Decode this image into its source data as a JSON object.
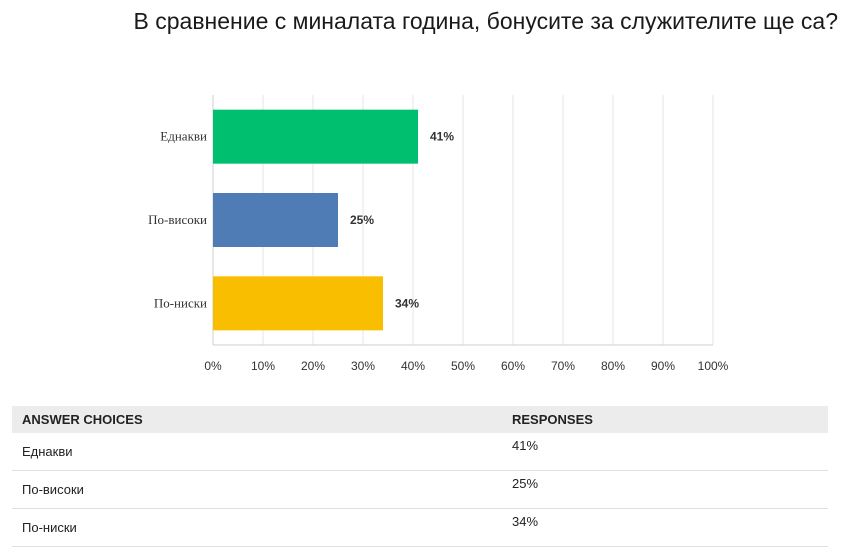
{
  "title": "В сравнение с миналата година, бонусите за служителите ще са?",
  "chart_data": {
    "type": "bar",
    "orientation": "horizontal",
    "categories": [
      "Еднакви",
      "По-високи",
      "По-ниски"
    ],
    "values": [
      41,
      25,
      34
    ],
    "value_labels": [
      "41%",
      "25%",
      "34%"
    ],
    "colors": [
      "#00bf6f",
      "#507cb6",
      "#f9be00"
    ],
    "xlim": [
      0,
      100
    ],
    "x_ticks": [
      "0%",
      "10%",
      "20%",
      "30%",
      "40%",
      "50%",
      "60%",
      "70%",
      "80%",
      "90%",
      "100%"
    ],
    "grid": true
  },
  "table": {
    "headers": [
      "ANSWER CHOICES",
      "RESPONSES"
    ],
    "rows": [
      {
        "choice": "Еднакви",
        "response": "41%"
      },
      {
        "choice": "По-високи",
        "response": "25%"
      },
      {
        "choice": "По-ниски",
        "response": "34%"
      }
    ]
  }
}
